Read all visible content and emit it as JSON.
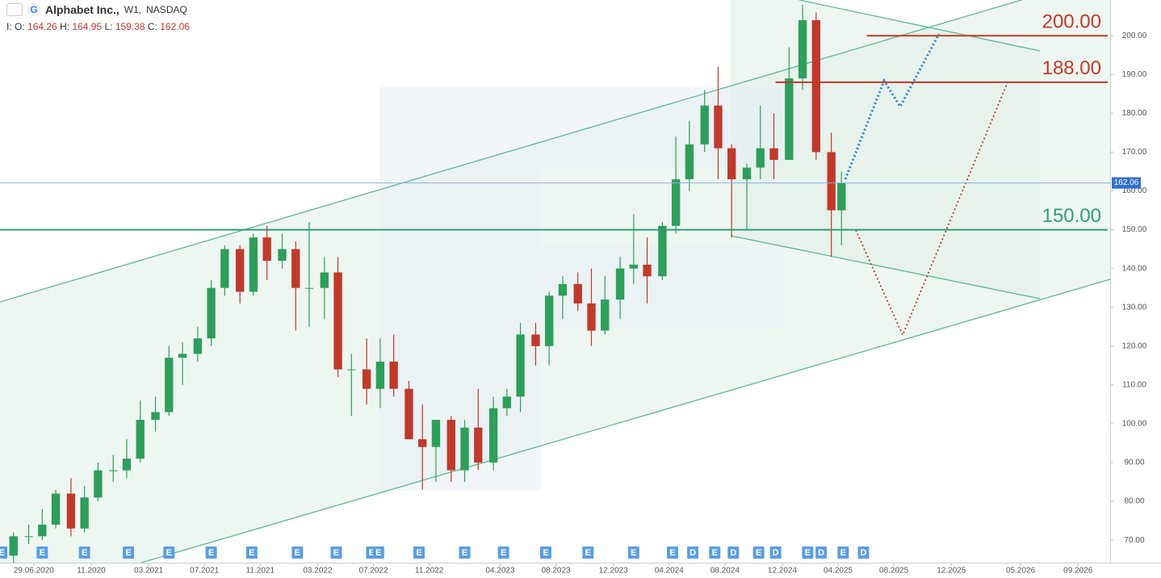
{
  "header": {
    "title": "Alphabet Inc.,",
    "interval": "W1,",
    "exchange": "NASDAQ",
    "prefix": "I:",
    "ohlc": [
      {
        "label": "O:",
        "value": "164.26"
      },
      {
        "label": "H:",
        "value": "164.95"
      },
      {
        "label": "L:",
        "value": "159.38"
      },
      {
        "label": "C:",
        "value": "162.06"
      }
    ]
  },
  "chart_data": {
    "type": "candlestick",
    "x": [
      2020.37,
      2020.46,
      2020.54,
      2020.62,
      2020.71,
      2020.79,
      2020.87,
      2020.96,
      2021.04,
      2021.12,
      2021.21,
      2021.29,
      2021.37,
      2021.46,
      2021.54,
      2021.62,
      2021.71,
      2021.79,
      2021.87,
      2021.96,
      2022.04,
      2022.12,
      2022.21,
      2022.29,
      2022.37,
      2022.46,
      2022.54,
      2022.62,
      2022.71,
      2022.79,
      2022.87,
      2022.96,
      2023.04,
      2023.12,
      2023.21,
      2023.29,
      2023.37,
      2023.46,
      2023.54,
      2023.62,
      2023.71,
      2023.79,
      2023.87,
      2023.96,
      2024.04,
      2024.12,
      2024.21,
      2024.29,
      2024.37,
      2024.46,
      2024.54,
      2024.62,
      2024.71,
      2024.79,
      2024.87,
      2024.96,
      2025.04,
      2025.12,
      2025.21,
      2025.27
    ],
    "open": [
      66,
      71,
      71,
      74,
      82,
      73,
      81,
      88,
      88,
      91,
      101,
      103,
      117,
      118,
      122,
      135,
      145,
      134,
      148,
      142,
      145,
      135,
      135,
      139,
      114,
      114,
      109,
      116,
      109,
      96,
      94,
      101,
      88,
      99,
      90,
      104,
      107,
      123,
      120,
      133,
      136,
      131,
      124,
      132,
      140,
      141,
      138,
      151,
      163,
      172,
      182,
      171,
      163,
      166,
      171,
      168,
      189,
      204,
      170,
      155
    ],
    "high": [
      72,
      74,
      78,
      83,
      86,
      84,
      90,
      92,
      96,
      106,
      107,
      120,
      121,
      125,
      137,
      146,
      146,
      149,
      151,
      149,
      147,
      152,
      143,
      143,
      118,
      122,
      122,
      123,
      111,
      105,
      101,
      102,
      101,
      109,
      107,
      109,
      126,
      126,
      134,
      138,
      139,
      140,
      138,
      143,
      154,
      148,
      152,
      174,
      178,
      186,
      192,
      172,
      167,
      182,
      180,
      197,
      208,
      206,
      175,
      165
    ],
    "low": [
      64,
      69,
      70,
      73,
      71,
      72,
      80,
      85,
      86,
      90,
      98,
      102,
      110,
      116,
      120,
      133,
      131,
      133,
      137,
      140,
      124,
      125,
      127,
      112,
      102,
      105,
      104,
      107,
      96,
      83,
      85,
      85,
      85,
      88,
      88,
      102,
      103,
      115,
      115,
      127,
      129,
      120,
      123,
      127,
      136,
      131,
      137,
      149,
      160,
      170,
      163,
      148,
      150,
      163,
      163,
      168,
      186,
      168,
      143,
      146
    ],
    "close": [
      71,
      71,
      74,
      82,
      73,
      81,
      88,
      88,
      91,
      101,
      103,
      117,
      118,
      122,
      135,
      145,
      134,
      148,
      142,
      145,
      135,
      135,
      139,
      114,
      114,
      109,
      116,
      109,
      96,
      94,
      101,
      88,
      99,
      90,
      104,
      107,
      123,
      120,
      133,
      136,
      131,
      124,
      132,
      140,
      141,
      138,
      151,
      163,
      172,
      182,
      171,
      163,
      166,
      171,
      168,
      189,
      204,
      170,
      155,
      162
    ],
    "up_color": "#2e9e5b",
    "down_color": "#c0392b",
    "xlim": [
      2020.29,
      2026.86
    ],
    "ylim": [
      64.2,
      209.2
    ],
    "xticks": [
      {
        "value": 2020.49,
        "label": "29.06.2020"
      },
      {
        "value": 2020.83,
        "label": "11.2020"
      },
      {
        "value": 2021.17,
        "label": "03.2021"
      },
      {
        "value": 2021.5,
        "label": "07.2021"
      },
      {
        "value": 2021.83,
        "label": "11.2021"
      },
      {
        "value": 2022.17,
        "label": "03.2022"
      },
      {
        "value": 2022.5,
        "label": "07.2022"
      },
      {
        "value": 2022.83,
        "label": "11.2022"
      },
      {
        "value": 2023.25,
        "label": "04.2023"
      },
      {
        "value": 2023.58,
        "label": "08.2023"
      },
      {
        "value": 2023.92,
        "label": "12.2023"
      },
      {
        "value": 2024.25,
        "label": "04.2024"
      },
      {
        "value": 2024.58,
        "label": "08.2024"
      },
      {
        "value": 2024.92,
        "label": "12.2024"
      },
      {
        "value": 2025.25,
        "label": "04.2025"
      },
      {
        "value": 2025.58,
        "label": "08.2025"
      },
      {
        "value": 2025.92,
        "label": "12.2025"
      },
      {
        "value": 2026.33,
        "label": "05.2026"
      },
      {
        "value": 2026.67,
        "label": "09.2026"
      }
    ],
    "yticks": [
      {
        "value": 70,
        "label": "70.00"
      },
      {
        "value": 80,
        "label": "80.00"
      },
      {
        "value": 90,
        "label": "90.00"
      },
      {
        "value": 100,
        "label": "100.00"
      },
      {
        "value": 110,
        "label": "110.00"
      },
      {
        "value": 120,
        "label": "120.00"
      },
      {
        "value": 130,
        "label": "130.00"
      },
      {
        "value": 140,
        "label": "140.00"
      },
      {
        "value": 150,
        "label": "150.00"
      },
      {
        "value": 160,
        "label": "160.00"
      },
      {
        "value": 170,
        "label": "170.00"
      },
      {
        "value": 180,
        "label": "180.00"
      },
      {
        "value": 190,
        "label": "190.00"
      },
      {
        "value": 200,
        "label": "200.00"
      }
    ],
    "levels": [
      {
        "value": 200,
        "label": "200.00",
        "color": "#c0392b",
        "from": 2025.42
      },
      {
        "value": 188,
        "label": "188.00",
        "color": "#c0392b",
        "from": 2024.88
      },
      {
        "value": 150,
        "label": "150.00",
        "color": "#2e9e7b",
        "from": 2020.29
      }
    ],
    "last_price": {
      "value": 162.06,
      "label": "162.06",
      "color": "#2f6fd1"
    },
    "events": [
      {
        "x": 2020.3,
        "label": "E"
      },
      {
        "x": 2020.54,
        "label": "E"
      },
      {
        "x": 2020.79,
        "label": "E"
      },
      {
        "x": 2021.05,
        "label": "E"
      },
      {
        "x": 2021.29,
        "label": "E"
      },
      {
        "x": 2021.54,
        "label": "E"
      },
      {
        "x": 2021.78,
        "label": "E"
      },
      {
        "x": 2022.05,
        "label": "E"
      },
      {
        "x": 2022.28,
        "label": "E"
      },
      {
        "x": 2022.49,
        "label": "E"
      },
      {
        "x": 2022.53,
        "label": "E"
      },
      {
        "x": 2022.77,
        "label": "E"
      },
      {
        "x": 2023.04,
        "label": "E"
      },
      {
        "x": 2023.27,
        "label": "E"
      },
      {
        "x": 2023.52,
        "label": "E"
      },
      {
        "x": 2023.77,
        "label": "E"
      },
      {
        "x": 2024.04,
        "label": "E"
      },
      {
        "x": 2024.27,
        "label": "E"
      },
      {
        "x": 2024.39,
        "label": "D"
      },
      {
        "x": 2024.52,
        "label": "E"
      },
      {
        "x": 2024.63,
        "label": "D"
      },
      {
        "x": 2024.78,
        "label": "E"
      },
      {
        "x": 2024.88,
        "label": "D"
      },
      {
        "x": 2025.07,
        "label": "E"
      },
      {
        "x": 2025.15,
        "label": "D"
      },
      {
        "x": 2025.28,
        "label": "E"
      },
      {
        "x": 2025.4,
        "label": "D"
      }
    ]
  }
}
